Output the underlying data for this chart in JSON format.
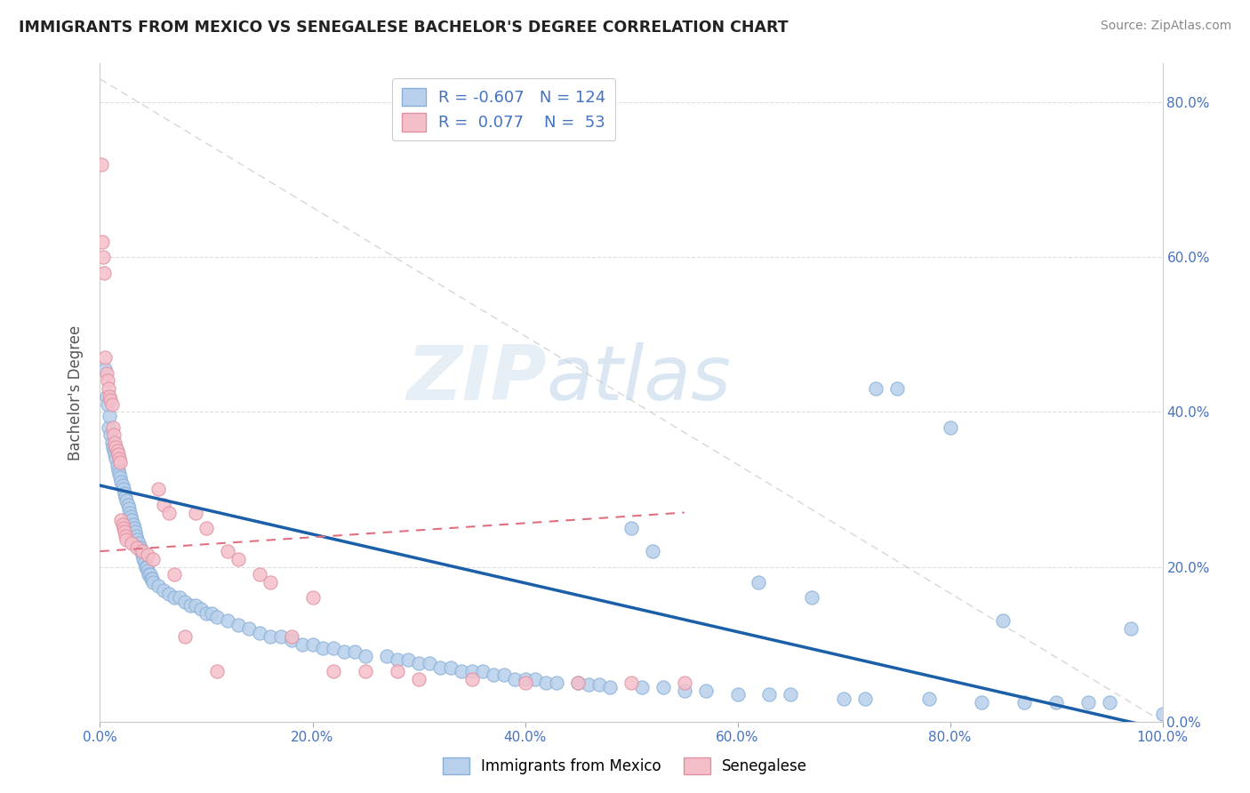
{
  "title": "IMMIGRANTS FROM MEXICO VS SENEGALESE BACHELOR'S DEGREE CORRELATION CHART",
  "source": "Source: ZipAtlas.com",
  "ylabel": "Bachelor's Degree",
  "legend_entries": [
    {
      "label": "Immigrants from Mexico",
      "R": -0.607,
      "N": 124,
      "color": "#b8d0eb",
      "edge": "#8ab0d8"
    },
    {
      "label": "Senegalese",
      "R": 0.077,
      "N": 53,
      "color": "#f5bfca",
      "edge": "#e090a0"
    }
  ],
  "blue_line_color": "#1a5fa8",
  "pink_line_color": "#e07080",
  "background_color": "#ffffff",
  "xmin": 0.0,
  "xmax": 100.0,
  "ymin": 0.0,
  "ymax": 85.0,
  "yticks": [
    0,
    20,
    40,
    60,
    80
  ],
  "xticks": [
    0,
    20,
    40,
    60,
    80,
    100
  ],
  "blue_scatter": [
    [
      0.5,
      45.5
    ],
    [
      0.6,
      42.0
    ],
    [
      0.7,
      41.0
    ],
    [
      0.8,
      38.0
    ],
    [
      0.9,
      39.5
    ],
    [
      1.0,
      37.0
    ],
    [
      1.1,
      36.0
    ],
    [
      1.2,
      35.5
    ],
    [
      1.3,
      35.0
    ],
    [
      1.4,
      34.5
    ],
    [
      1.5,
      34.0
    ],
    [
      1.6,
      33.0
    ],
    [
      1.7,
      32.5
    ],
    [
      1.8,
      32.0
    ],
    [
      1.9,
      31.5
    ],
    [
      2.0,
      31.0
    ],
    [
      2.1,
      30.5
    ],
    [
      2.2,
      30.0
    ],
    [
      2.3,
      29.5
    ],
    [
      2.4,
      29.0
    ],
    [
      2.5,
      28.5
    ],
    [
      2.6,
      28.0
    ],
    [
      2.7,
      27.5
    ],
    [
      2.8,
      27.0
    ],
    [
      2.9,
      26.5
    ],
    [
      3.0,
      26.0
    ],
    [
      3.1,
      25.5
    ],
    [
      3.2,
      25.0
    ],
    [
      3.3,
      24.5
    ],
    [
      3.4,
      24.0
    ],
    [
      3.5,
      23.5
    ],
    [
      3.6,
      23.0
    ],
    [
      3.7,
      22.5
    ],
    [
      3.8,
      22.5
    ],
    [
      3.9,
      22.0
    ],
    [
      4.0,
      21.5
    ],
    [
      4.1,
      21.0
    ],
    [
      4.2,
      20.5
    ],
    [
      4.3,
      20.0
    ],
    [
      4.4,
      20.0
    ],
    [
      4.5,
      19.5
    ],
    [
      4.6,
      19.0
    ],
    [
      4.7,
      19.0
    ],
    [
      4.8,
      18.5
    ],
    [
      4.9,
      18.5
    ],
    [
      5.0,
      18.0
    ],
    [
      5.5,
      17.5
    ],
    [
      6.0,
      17.0
    ],
    [
      6.5,
      16.5
    ],
    [
      7.0,
      16.0
    ],
    [
      7.5,
      16.0
    ],
    [
      8.0,
      15.5
    ],
    [
      8.5,
      15.0
    ],
    [
      9.0,
      15.0
    ],
    [
      9.5,
      14.5
    ],
    [
      10.0,
      14.0
    ],
    [
      10.5,
      14.0
    ],
    [
      11.0,
      13.5
    ],
    [
      12.0,
      13.0
    ],
    [
      13.0,
      12.5
    ],
    [
      14.0,
      12.0
    ],
    [
      15.0,
      11.5
    ],
    [
      16.0,
      11.0
    ],
    [
      17.0,
      11.0
    ],
    [
      18.0,
      10.5
    ],
    [
      19.0,
      10.0
    ],
    [
      20.0,
      10.0
    ],
    [
      21.0,
      9.5
    ],
    [
      22.0,
      9.5
    ],
    [
      23.0,
      9.0
    ],
    [
      24.0,
      9.0
    ],
    [
      25.0,
      8.5
    ],
    [
      27.0,
      8.5
    ],
    [
      28.0,
      8.0
    ],
    [
      29.0,
      8.0
    ],
    [
      30.0,
      7.5
    ],
    [
      31.0,
      7.5
    ],
    [
      32.0,
      7.0
    ],
    [
      33.0,
      7.0
    ],
    [
      34.0,
      6.5
    ],
    [
      35.0,
      6.5
    ],
    [
      36.0,
      6.5
    ],
    [
      37.0,
      6.0
    ],
    [
      38.0,
      6.0
    ],
    [
      39.0,
      5.5
    ],
    [
      40.0,
      5.5
    ],
    [
      41.0,
      5.5
    ],
    [
      42.0,
      5.0
    ],
    [
      43.0,
      5.0
    ],
    [
      45.0,
      5.0
    ],
    [
      46.0,
      4.8
    ],
    [
      47.0,
      4.8
    ],
    [
      48.0,
      4.5
    ],
    [
      50.0,
      25.0
    ],
    [
      51.0,
      4.5
    ],
    [
      52.0,
      22.0
    ],
    [
      53.0,
      4.5
    ],
    [
      55.0,
      4.0
    ],
    [
      57.0,
      4.0
    ],
    [
      60.0,
      3.5
    ],
    [
      62.0,
      18.0
    ],
    [
      63.0,
      3.5
    ],
    [
      65.0,
      3.5
    ],
    [
      67.0,
      16.0
    ],
    [
      70.0,
      3.0
    ],
    [
      72.0,
      3.0
    ],
    [
      73.0,
      43.0
    ],
    [
      75.0,
      43.0
    ],
    [
      78.0,
      3.0
    ],
    [
      80.0,
      38.0
    ],
    [
      83.0,
      2.5
    ],
    [
      85.0,
      13.0
    ],
    [
      87.0,
      2.5
    ],
    [
      90.0,
      2.5
    ],
    [
      93.0,
      2.5
    ],
    [
      95.0,
      2.5
    ],
    [
      97.0,
      12.0
    ],
    [
      100.0,
      1.0
    ]
  ],
  "pink_scatter": [
    [
      0.1,
      72.0
    ],
    [
      0.2,
      62.0
    ],
    [
      0.3,
      60.0
    ],
    [
      0.4,
      58.0
    ],
    [
      0.5,
      47.0
    ],
    [
      0.6,
      45.0
    ],
    [
      0.7,
      44.0
    ],
    [
      0.8,
      43.0
    ],
    [
      0.9,
      42.0
    ],
    [
      1.0,
      41.5
    ],
    [
      1.1,
      41.0
    ],
    [
      1.2,
      38.0
    ],
    [
      1.3,
      37.0
    ],
    [
      1.4,
      36.0
    ],
    [
      1.5,
      35.5
    ],
    [
      1.6,
      35.0
    ],
    [
      1.7,
      34.5
    ],
    [
      1.8,
      34.0
    ],
    [
      1.9,
      33.5
    ],
    [
      2.0,
      26.0
    ],
    [
      2.1,
      25.5
    ],
    [
      2.2,
      25.0
    ],
    [
      2.3,
      24.5
    ],
    [
      2.4,
      24.0
    ],
    [
      2.5,
      23.5
    ],
    [
      3.0,
      23.0
    ],
    [
      3.5,
      22.5
    ],
    [
      4.0,
      22.0
    ],
    [
      4.5,
      21.5
    ],
    [
      5.0,
      21.0
    ],
    [
      5.5,
      30.0
    ],
    [
      6.0,
      28.0
    ],
    [
      6.5,
      27.0
    ],
    [
      7.0,
      19.0
    ],
    [
      8.0,
      11.0
    ],
    [
      9.0,
      27.0
    ],
    [
      10.0,
      25.0
    ],
    [
      11.0,
      6.5
    ],
    [
      12.0,
      22.0
    ],
    [
      13.0,
      21.0
    ],
    [
      15.0,
      19.0
    ],
    [
      16.0,
      18.0
    ],
    [
      18.0,
      11.0
    ],
    [
      20.0,
      16.0
    ],
    [
      22.0,
      6.5
    ],
    [
      25.0,
      6.5
    ],
    [
      28.0,
      6.5
    ],
    [
      30.0,
      5.5
    ],
    [
      35.0,
      5.5
    ],
    [
      40.0,
      5.0
    ],
    [
      45.0,
      5.0
    ],
    [
      50.0,
      5.0
    ],
    [
      55.0,
      5.0
    ]
  ],
  "blue_line": [
    [
      0.0,
      30.5
    ],
    [
      100.0,
      -1.0
    ]
  ],
  "pink_line": [
    [
      0.0,
      22.0
    ],
    [
      55.0,
      27.0
    ]
  ],
  "diag_line": [
    [
      0.0,
      83.0
    ],
    [
      100.0,
      0.0
    ]
  ]
}
